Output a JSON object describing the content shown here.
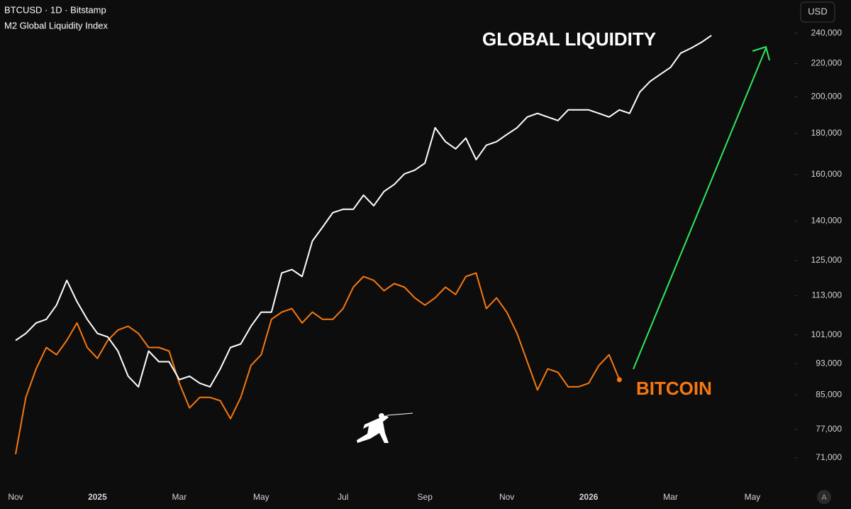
{
  "chart_data": {
    "type": "line",
    "title": "BTCUSD · 1D · Bitstamp",
    "subtitle": "M2 Global Liquidity Index",
    "unit_button": "USD",
    "auto_scale_button": "A",
    "annotations": [
      {
        "text": "GLOBAL LIQUIDITY",
        "color": "#ffffff"
      },
      {
        "text": "BITCOIN",
        "color": "#f7780f"
      }
    ],
    "log_scale": true,
    "grid": false,
    "categories": [
      "Nov",
      null,
      null,
      null,
      null,
      null,
      null,
      null,
      "2025",
      null,
      null,
      null,
      null,
      null,
      null,
      null,
      "Mar",
      null,
      null,
      null,
      null,
      null,
      null,
      null,
      "May",
      null,
      null,
      null,
      null,
      null,
      null,
      null,
      "Jul",
      null,
      null,
      null,
      null,
      null,
      null,
      null,
      "Sep",
      null,
      null,
      null,
      null,
      null,
      null,
      null,
      "Nov",
      null,
      null,
      null,
      null,
      null,
      null,
      null,
      "2026",
      null,
      null,
      null,
      null,
      null,
      null,
      null,
      "Mar",
      null,
      null,
      null,
      null,
      null,
      null,
      null,
      "May",
      null,
      null,
      null
    ],
    "series": [
      {
        "name": "BTCUSD · 1D · Bitstamp",
        "color": "#f7780f",
        "values": [
          71700,
          84400,
          91600,
          97400,
          95400,
          99400,
          104500,
          97400,
          94400,
          99400,
          102400,
          103500,
          101400,
          97400,
          97400,
          96400,
          87900,
          81900,
          84400,
          84400,
          83600,
          79400,
          84400,
          92500,
          95400,
          105600,
          107800,
          108900,
          104500,
          107800,
          105600,
          105600,
          108900,
          115800,
          119400,
          118100,
          114600,
          117000,
          115800,
          112300,
          110000,
          112300,
          115800,
          113400,
          119400,
          120600,
          108900,
          112300,
          107800,
          101400,
          93500,
          86200,
          91600,
          90700,
          87000,
          87000,
          87900,
          92500,
          95400,
          88800,
          null,
          null,
          null,
          null,
          null,
          null,
          null,
          null,
          null,
          null,
          null,
          null,
          null,
          null,
          null,
          null
        ]
      },
      {
        "name": "M2 Global Liquidity Index",
        "color": "#ffffff",
        "values": [
          99400,
          101400,
          104500,
          105600,
          110000,
          118100,
          111100,
          105600,
          101400,
          100400,
          96400,
          89700,
          87000,
          96400,
          93500,
          93500,
          88800,
          89700,
          87900,
          87000,
          91600,
          97400,
          98400,
          103500,
          107800,
          107800,
          120600,
          121800,
          119400,
          132200,
          137600,
          143400,
          144800,
          144800,
          150800,
          146300,
          152400,
          155500,
          160300,
          162000,
          165300,
          183000,
          175800,
          172200,
          177600,
          167000,
          174000,
          175800,
          179400,
          183000,
          188700,
          190700,
          188700,
          186800,
          192600,
          192600,
          192600,
          190700,
          188700,
          192600,
          190700,
          202700,
          209000,
          213300,
          217600,
          226700,
          229900,
          233700,
          238500,
          null,
          null,
          null,
          null,
          null,
          null,
          null
        ]
      }
    ],
    "ylim": [
      65000,
      264000
    ],
    "yticks": [
      {
        "value": 71000,
        "label": "71,000"
      },
      {
        "value": 77000,
        "label": "77,000"
      },
      {
        "value": 85000,
        "label": "85,000"
      },
      {
        "value": 93000,
        "label": "93,000"
      },
      {
        "value": 101000,
        "label": "101,000"
      },
      {
        "value": 113000,
        "label": "113,000"
      },
      {
        "value": 125000,
        "label": "125,000"
      },
      {
        "value": 140000,
        "label": "140,000"
      },
      {
        "value": 160000,
        "label": "160,000"
      },
      {
        "value": 180000,
        "label": "180,000"
      },
      {
        "value": 200000,
        "label": "200,000"
      },
      {
        "value": 220000,
        "label": "220,000"
      },
      {
        "value": 240000,
        "label": "240,000"
      }
    ]
  }
}
